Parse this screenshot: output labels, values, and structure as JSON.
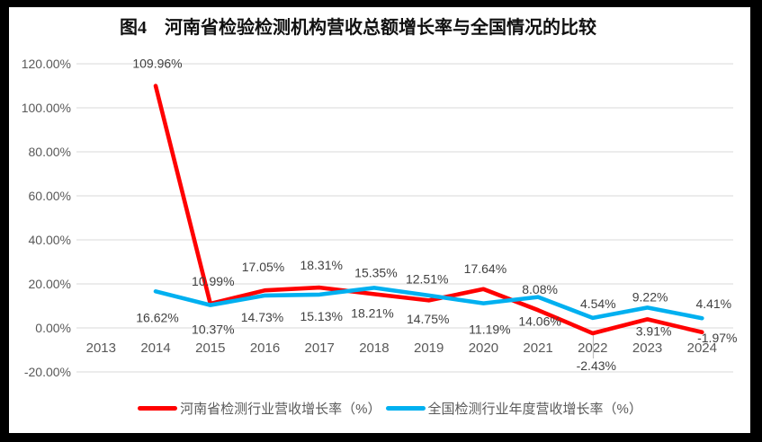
{
  "title": "图4　河南省检验检测机构营收总额增长率与全国情况的比较",
  "chart_data": {
    "type": "line",
    "categories": [
      "2013",
      "2014",
      "2015",
      "2016",
      "2017",
      "2018",
      "2019",
      "2020",
      "2021",
      "2022",
      "2023",
      "2024"
    ],
    "series": [
      {
        "name": "河南省检测行业营收增长率（%）",
        "color": "#FF0000",
        "values": [
          null,
          109.96,
          10.99,
          17.05,
          18.31,
          15.35,
          12.51,
          17.64,
          8.08,
          -2.43,
          3.91,
          -1.97
        ],
        "labels": [
          null,
          "109.96%",
          "10.99%",
          "17.05%",
          "18.31%",
          "15.35%",
          "12.51%",
          "17.64%",
          "8.08%",
          "-2.43%",
          "3.91%",
          "-1.97%"
        ]
      },
      {
        "name": "全国检测行业年度营收增长率（%）",
        "color": "#00B0F0",
        "values": [
          null,
          16.62,
          10.37,
          14.73,
          15.13,
          18.21,
          14.75,
          11.19,
          14.06,
          4.54,
          9.22,
          4.41
        ],
        "labels": [
          null,
          "16.62%",
          "10.37%",
          "14.73%",
          "15.13%",
          "18.21%",
          "14.75%",
          "11.19%",
          "14.06%",
          "4.54%",
          "9.22%",
          "4.41%"
        ]
      }
    ],
    "y_axis": {
      "min": -20,
      "max": 120,
      "tick_step": 20,
      "ticks": [
        "120.00%",
        "100.00%",
        "80.00%",
        "60.00%",
        "40.00%",
        "20.00%",
        "0.00%",
        "-20.00%"
      ]
    },
    "x_axis": {
      "label_side": "near_zero_axis"
    },
    "grid": true,
    "legend_position": "bottom",
    "colors": {
      "gridline": "#D9D9D9",
      "tick_text": "#595959",
      "data_label": "#404040",
      "leader_line": "#BFBFBF",
      "background": "#FFFFFF",
      "frame": "#000000"
    }
  }
}
